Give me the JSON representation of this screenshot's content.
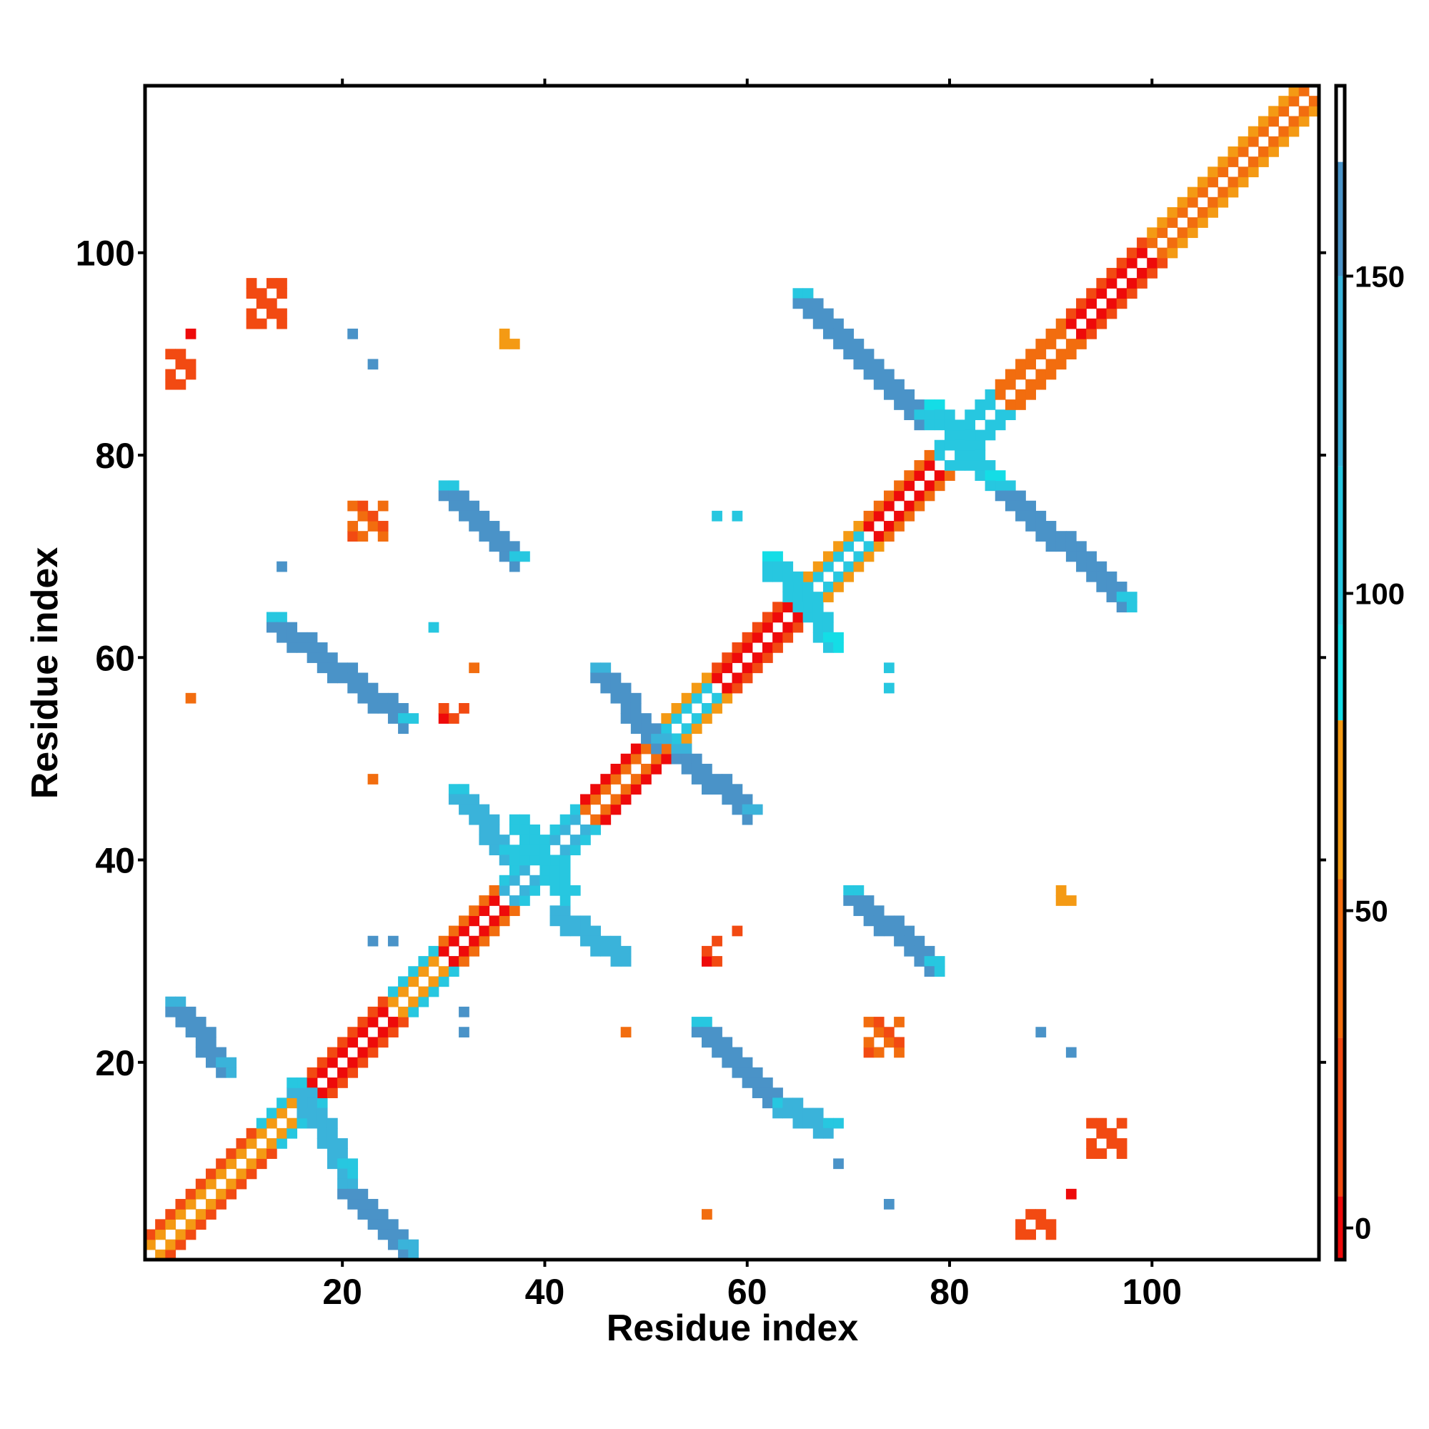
{
  "chart_data": {
    "type": "heatmap",
    "title": "",
    "xlabel": "Residue index",
    "ylabel": "Residue index",
    "xlim": [
      1,
      116
    ],
    "ylim": [
      1,
      116
    ],
    "x_ticks": [
      "20",
      "40",
      "60",
      "80",
      "100"
    ],
    "y_ticks": [
      "20",
      "40",
      "60",
      "80",
      "100"
    ],
    "grid": false,
    "colorbar": {
      "range": [
        -5,
        180
      ],
      "ticks": [
        "0",
        "50",
        "100",
        "150"
      ],
      "bands": [
        {
          "from": -5,
          "to": 5,
          "color": "#ee0a0a"
        },
        {
          "from": 5,
          "to": 30,
          "color": "#f24a12"
        },
        {
          "from": 30,
          "to": 55,
          "color": "#f26d0f"
        },
        {
          "from": 55,
          "to": 80,
          "color": "#f49a14"
        },
        {
          "from": 80,
          "to": 95,
          "color": "#14dde6"
        },
        {
          "from": 95,
          "to": 120,
          "color": "#27c7e0"
        },
        {
          "from": 120,
          "to": 150,
          "color": "#3ab3da"
        },
        {
          "from": 150,
          "to": 168,
          "color": "#4a93c8"
        },
        {
          "from": 168,
          "to": 180,
          "color": "#ffffff"
        }
      ]
    },
    "diagonal": {
      "description_free": true,
      "segments": [
        {
          "from": 1,
          "to": 12,
          "values": [
            55,
            10
          ]
        },
        {
          "from": 12,
          "to": 17,
          "values": [
            70,
            100
          ]
        },
        {
          "from": 17,
          "to": 25,
          "values": [
            0,
            20
          ]
        },
        {
          "from": 25,
          "to": 30,
          "values": [
            60,
            110
          ]
        },
        {
          "from": 30,
          "to": 36,
          "values": [
            0,
            40
          ]
        },
        {
          "from": 36,
          "to": 44,
          "values": [
            120,
            100
          ]
        },
        {
          "from": 44,
          "to": 52,
          "values": [
            40,
            0
          ]
        },
        {
          "from": 52,
          "to": 57,
          "values": [
            110,
            60
          ]
        },
        {
          "from": 57,
          "to": 65,
          "values": [
            0,
            20
          ]
        },
        {
          "from": 65,
          "to": 72,
          "values": [
            100,
            60
          ]
        },
        {
          "from": 72,
          "to": 79,
          "values": [
            0,
            40
          ]
        },
        {
          "from": 79,
          "to": 85,
          "values": [
            110,
            100
          ]
        },
        {
          "from": 85,
          "to": 92,
          "values": [
            50,
            30
          ]
        },
        {
          "from": 92,
          "to": 100,
          "values": [
            0,
            20
          ]
        },
        {
          "from": 100,
          "to": 116,
          "values": [
            30,
            60
          ]
        }
      ]
    },
    "contact_bands": [
      {
        "x0": 3,
        "y0": 26,
        "x1": 8,
        "y1": 20,
        "value": 160,
        "edge": 130
      },
      {
        "x0": 13,
        "y0": 64,
        "x1": 26,
        "y1": 54,
        "value": 160,
        "edge": 100
      },
      {
        "x0": 30,
        "y0": 77,
        "x1": 37,
        "y1": 70,
        "value": 160,
        "edge": 100
      },
      {
        "x0": 45,
        "y0": 59,
        "x1": 51,
        "y1": 52,
        "value": 160,
        "edge": 120
      },
      {
        "x0": 53,
        "y0": 51,
        "x1": 60,
        "y1": 45,
        "value": 160,
        "edge": 120
      },
      {
        "x0": 31,
        "y0": 47,
        "x1": 36,
        "y1": 41,
        "value": 130,
        "edge": 110
      },
      {
        "x0": 41,
        "y0": 35,
        "x1": 47,
        "y1": 31,
        "value": 140,
        "edge": 120
      },
      {
        "x0": 55,
        "y0": 24,
        "x1": 63,
        "y1": 16,
        "value": 160,
        "edge": 110
      },
      {
        "x0": 63,
        "y0": 16,
        "x1": 68,
        "y1": 14,
        "value": 130,
        "edge": 100
      },
      {
        "x0": 70,
        "y0": 37,
        "x1": 78,
        "y1": 30,
        "value": 160,
        "edge": 100
      },
      {
        "x0": 65,
        "y0": 96,
        "x1": 77,
        "y1": 84,
        "value": 160,
        "edge": 100
      },
      {
        "x0": 85,
        "y0": 77,
        "x1": 97,
        "y1": 66,
        "value": 160,
        "edge": 100
      },
      {
        "x0": 15,
        "y0": 18,
        "x1": 20,
        "y1": 10,
        "value": 140,
        "edge": 100
      },
      {
        "x0": 20,
        "y0": 8,
        "x1": 26,
        "y1": 2,
        "value": 160,
        "edge": 130
      },
      {
        "x0": 37,
        "y0": 44,
        "x1": 42,
        "y1": 37,
        "value": 110,
        "edge": 95
      },
      {
        "x0": 78,
        "y0": 85,
        "x1": 84,
        "y1": 78,
        "value": 105,
        "edge": 90
      },
      {
        "x0": 62,
        "y0": 70,
        "x1": 68,
        "y1": 62,
        "value": 105,
        "edge": 90
      }
    ],
    "contact_patches": [
      {
        "x": 11,
        "y": 93,
        "w": 4,
        "h": 5,
        "value": 20
      },
      {
        "x": 3,
        "y": 87,
        "w": 3,
        "h": 4,
        "value": 20
      },
      {
        "x": 21,
        "y": 72,
        "w": 4,
        "h": 4,
        "value": 30
      },
      {
        "x": 72,
        "y": 21,
        "w": 4,
        "h": 4,
        "value": 30
      },
      {
        "x": 94,
        "y": 11,
        "w": 4,
        "h": 4,
        "value": 20
      },
      {
        "x": 87,
        "y": 3,
        "w": 4,
        "h": 3,
        "value": 20
      },
      {
        "x": 30,
        "y": 54,
        "w": 3,
        "h": 2,
        "value": 10
      },
      {
        "x": 56,
        "y": 30,
        "w": 2,
        "h": 3,
        "value": 10
      },
      {
        "x": 36,
        "y": 91,
        "w": 2,
        "h": 2,
        "value": 70
      },
      {
        "x": 91,
        "y": 36,
        "w": 2,
        "h": 2,
        "value": 70
      }
    ],
    "isolated_points": [
      {
        "x": 5,
        "y": 92,
        "value": 0
      },
      {
        "x": 21,
        "y": 92,
        "value": 160
      },
      {
        "x": 23,
        "y": 89,
        "value": 160
      },
      {
        "x": 5,
        "y": 56,
        "value": 40
      },
      {
        "x": 23,
        "y": 48,
        "value": 40
      },
      {
        "x": 33,
        "y": 59,
        "value": 40
      },
      {
        "x": 48,
        "y": 23,
        "value": 40
      },
      {
        "x": 56,
        "y": 5,
        "value": 40
      },
      {
        "x": 92,
        "y": 7,
        "value": 0
      },
      {
        "x": 74,
        "y": 59,
        "value": 110
      },
      {
        "x": 74,
        "y": 57,
        "value": 110
      },
      {
        "x": 89,
        "y": 23,
        "value": 160
      },
      {
        "x": 92,
        "y": 21,
        "value": 160
      },
      {
        "x": 68,
        "y": 61,
        "value": 110
      },
      {
        "x": 62,
        "y": 68,
        "value": 110
      },
      {
        "x": 57,
        "y": 74,
        "value": 110
      },
      {
        "x": 59,
        "y": 74,
        "value": 110
      },
      {
        "x": 14,
        "y": 69,
        "value": 160
      },
      {
        "x": 29,
        "y": 63,
        "value": 100
      },
      {
        "x": 59,
        "y": 33,
        "value": 10
      },
      {
        "x": 32,
        "y": 23,
        "value": 160
      },
      {
        "x": 32,
        "y": 25,
        "value": 160
      },
      {
        "x": 23,
        "y": 32,
        "value": 160
      },
      {
        "x": 25,
        "y": 32,
        "value": 160
      },
      {
        "x": 69,
        "y": 10,
        "value": 160
      },
      {
        "x": 74,
        "y": 6,
        "value": 160
      }
    ]
  }
}
